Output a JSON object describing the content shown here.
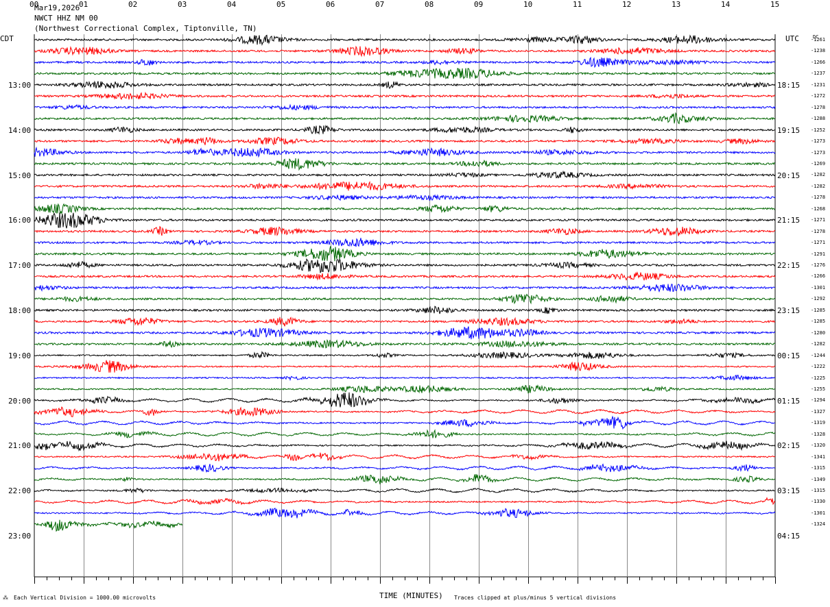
{
  "header": {
    "date": "Mar19,2026",
    "station": "NWCT HHZ NM 00",
    "location": "(Northwest Correctional Complex, Tiptonville, TN)"
  },
  "labels": {
    "left_tz": "CDT",
    "right_tz": "UTC",
    "dc_header": "DC",
    "xlabel": "TIME (MINUTES)",
    "footer_left": "Each Vertical Division = 1000.00 microvolts",
    "footer_right": "Traces clipped at plus/minus 5 vertical divisions"
  },
  "chart_data": {
    "type": "line",
    "title": "NWCT HHZ NM 00",
    "xlabel": "TIME (MINUTES)",
    "xlim": [
      0,
      15
    ],
    "x_ticks": [
      "00",
      "01",
      "02",
      "03",
      "04",
      "05",
      "06",
      "07",
      "08",
      "09",
      "10",
      "11",
      "12",
      "13",
      "14",
      "15"
    ],
    "left_time_labels": [
      "13:00",
      "14:00",
      "15:00",
      "16:00",
      "17:00",
      "18:00",
      "19:00",
      "20:00",
      "21:00",
      "22:00",
      "23:00"
    ],
    "right_time_labels": [
      "18:15",
      "19:15",
      "20:15",
      "21:15",
      "22:15",
      "23:15",
      "00:15",
      "01:15",
      "02:15",
      "03:15",
      "04:15"
    ],
    "trace_colors": [
      "#000000",
      "#ff0000",
      "#0000ff",
      "#006600"
    ],
    "traces_per_hour": 4,
    "minutes_per_trace": 15,
    "last_trace_minutes": 3,
    "dc_offsets": [
      "-1261",
      "-1238",
      "-1266",
      "-1237",
      "-1231",
      "-1272",
      "-1278",
      "-1288",
      "-1252",
      "-1273",
      "-1273",
      "-1269",
      "-1282",
      "-1282",
      "-1278",
      "-1268",
      "-1271",
      "-1278",
      "-1271",
      "-1291",
      "-1276",
      "-1266",
      "-1301",
      "-1292",
      "-1285",
      "-1285",
      "-1280",
      "-1282",
      "-1244",
      "-1222",
      "-1225",
      "-1255",
      "-1294",
      "-1327",
      "-1319",
      "-1328",
      "-1320",
      "-1341",
      "-1315",
      "-1349",
      "-1315",
      "-1330",
      "-1301",
      "-1324"
    ]
  }
}
